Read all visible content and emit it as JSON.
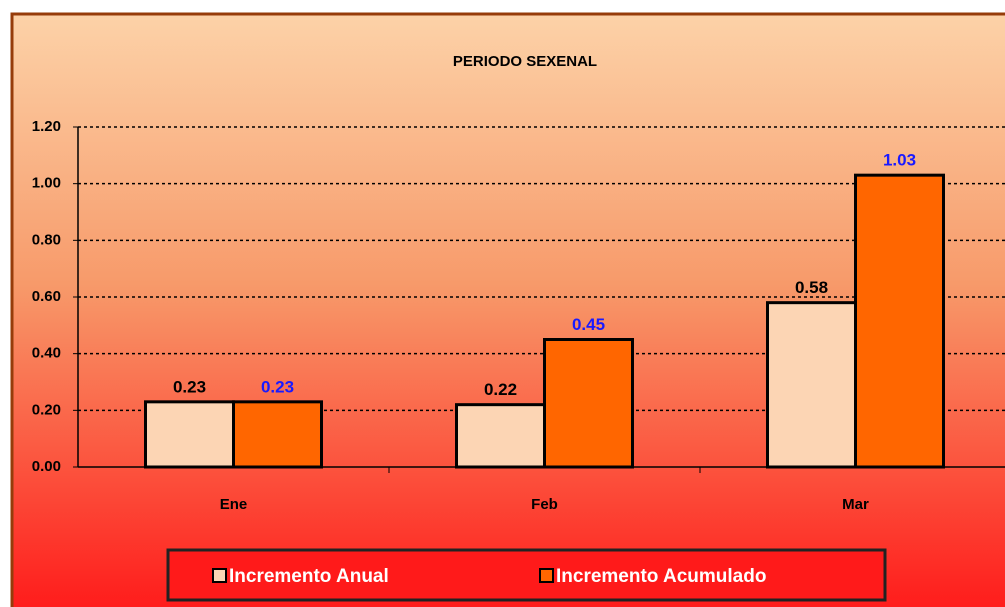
{
  "chart_data": {
    "type": "bar",
    "title": "PERIODO SEXENAL",
    "categories": [
      "Ene",
      "Feb",
      "Mar"
    ],
    "series": [
      {
        "name": "Incremento Anual",
        "color": "#fcd5b4",
        "label_color": "#000000",
        "values": [
          0.23,
          0.22,
          0.58
        ]
      },
      {
        "name": "Incremento Acumulado",
        "color": "#ff6600",
        "label_color": "#1a1aff",
        "values": [
          0.23,
          0.45,
          1.03
        ]
      }
    ],
    "ylim": [
      0,
      1.2
    ],
    "yticks": [
      {
        "value": 0,
        "label": "0.00"
      },
      {
        "value": 0.2,
        "label": "0.20"
      },
      {
        "value": 0.4,
        "label": "0.40"
      },
      {
        "value": 0.6,
        "label": "0.60"
      },
      {
        "value": 0.8,
        "label": "0.80"
      },
      {
        "value": 1.0,
        "label": "1.00"
      },
      {
        "value": 1.2,
        "label": "1.20"
      }
    ],
    "grid": true,
    "legend": "bottom"
  }
}
